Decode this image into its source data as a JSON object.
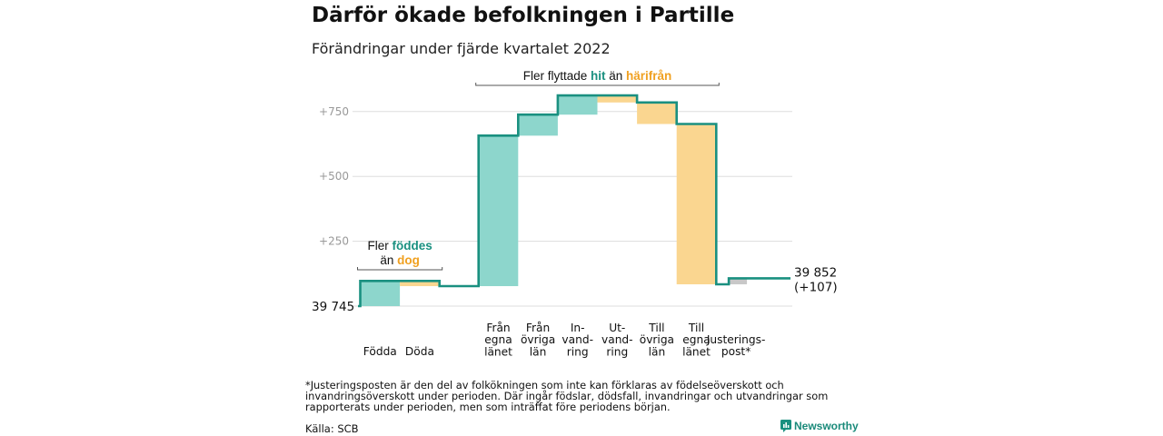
{
  "header": {
    "title": "Därför ökade befolkningen i Partille",
    "subtitle": "Förändringar under fjärde kvartalet 2022"
  },
  "footer": {
    "footnote": "*Justeringsposten är den del av folkökningen som inte kan förklaras av födelseöverskott och invandringsöverskott under perioden. Där ingår födslar, dödsfall, invandringar och utvandringar som rapporterats under perioden, men som inträffat före periodens början.",
    "source": "Källa: SCB",
    "brand": "Newsworthy"
  },
  "colors": {
    "increase": "#8dd6cc",
    "decrease": "#fad690",
    "adjustment": "#c8c8c8",
    "line": "#1a9080",
    "teal_text": "#1a9080",
    "orange_text": "#f0a020",
    "grid": "#dddddd",
    "tick": "#999999"
  },
  "chart_data": {
    "type": "waterfall",
    "start_value": 39745,
    "start_label": "39 745",
    "end_label": "39 852",
    "end_change_label": "(+107)",
    "y_ticks": [
      {
        "value": 250,
        "label": "+250"
      },
      {
        "value": 500,
        "label": "+500"
      },
      {
        "value": 750,
        "label": "+750"
      }
    ],
    "ylim": [
      0,
      800
    ],
    "steps": [
      {
        "label_lines": [
          "Födda"
        ],
        "change": 97,
        "kind": "increase"
      },
      {
        "label_lines": [
          "Döda"
        ],
        "change": -20,
        "kind": "decrease"
      },
      {
        "label_lines": [
          "Från",
          "egna",
          "länet"
        ],
        "change": 580,
        "kind": "increase"
      },
      {
        "label_lines": [
          "Från",
          "övriga",
          "län"
        ],
        "change": 81,
        "kind": "increase"
      },
      {
        "label_lines": [
          "In-",
          "vand-",
          "ring"
        ],
        "change": 74,
        "kind": "increase"
      },
      {
        "label_lines": [
          "Ut-",
          "vand-",
          "ring"
        ],
        "change": -27,
        "kind": "decrease"
      },
      {
        "label_lines": [
          "Till",
          "övriga",
          "län"
        ],
        "change": -83,
        "kind": "decrease"
      },
      {
        "label_lines": [
          "Till",
          "egna",
          "länet"
        ],
        "change": -618,
        "kind": "decrease"
      },
      {
        "label_lines": [
          "Justerings-",
          "post*"
        ],
        "change": 23,
        "kind": "adjustment"
      }
    ],
    "annotations": [
      {
        "first_step": 0,
        "last_step": 1,
        "lines": [
          [
            {
              "text": "Fler ",
              "style": "plain"
            },
            {
              "text": "föddes",
              "style": "teal"
            }
          ],
          [
            {
              "text": "än ",
              "style": "plain"
            },
            {
              "text": "dog",
              "style": "orange"
            }
          ]
        ]
      },
      {
        "first_step": 2,
        "last_step": 7,
        "lines": [
          [
            {
              "text": "Fler flyttade ",
              "style": "plain"
            },
            {
              "text": "hit",
              "style": "teal"
            },
            {
              "text": " än ",
              "style": "plain"
            },
            {
              "text": "härifrån",
              "style": "orange"
            }
          ]
        ]
      }
    ]
  }
}
